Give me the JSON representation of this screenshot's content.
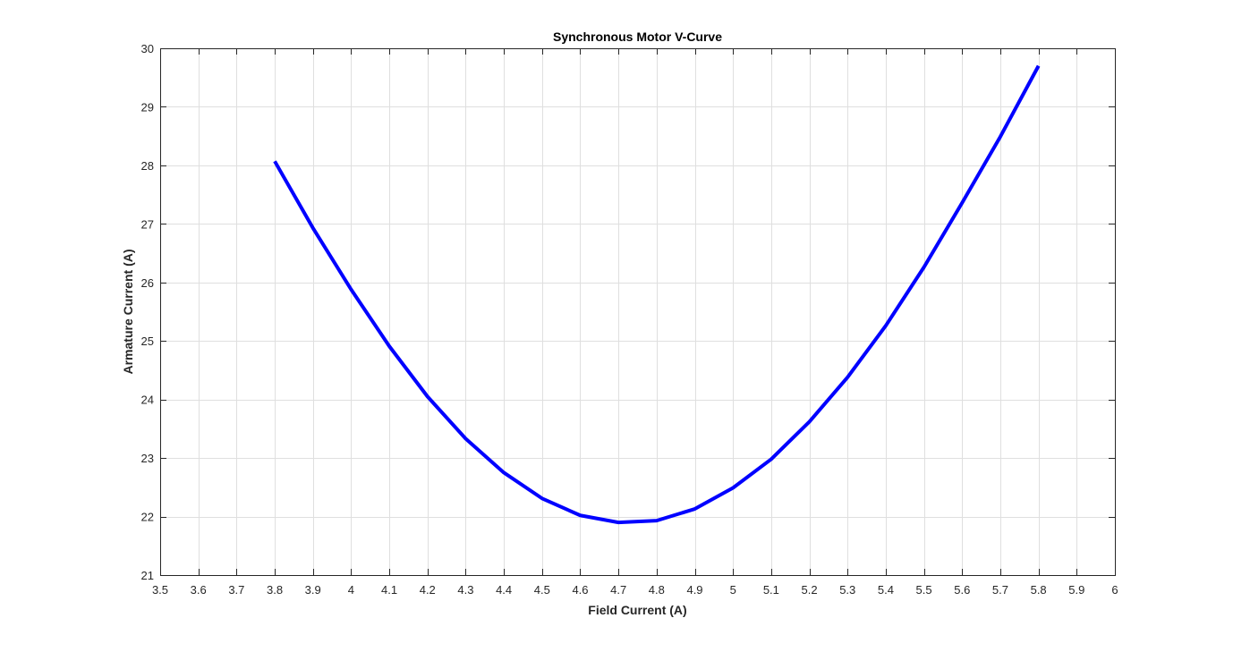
{
  "chart_data": {
    "type": "line",
    "title": "Synchronous Motor V-Curve",
    "xlabel": "Field Current (A)",
    "ylabel": "Armature Current (A)",
    "xlim": [
      3.5,
      6
    ],
    "ylim": [
      21,
      30
    ],
    "xticks": [
      "3.5",
      "3.6",
      "3.7",
      "3.8",
      "3.9",
      "4",
      "4.1",
      "4.2",
      "4.3",
      "4.4",
      "4.5",
      "4.6",
      "4.7",
      "4.8",
      "4.9",
      "5",
      "5.1",
      "5.2",
      "5.3",
      "5.4",
      "5.5",
      "5.6",
      "5.7",
      "5.8",
      "5.9",
      "6"
    ],
    "yticks": [
      "21",
      "22",
      "23",
      "24",
      "25",
      "26",
      "27",
      "28",
      "29",
      "30"
    ],
    "grid": true,
    "series": [
      {
        "color": "#0000ff",
        "x": [
          3.8,
          3.9,
          4.0,
          4.1,
          4.2,
          4.3,
          4.4,
          4.5,
          4.6,
          4.7,
          4.8,
          4.9,
          5.0,
          5.1,
          5.2,
          5.3,
          5.4,
          5.5,
          5.6,
          5.7,
          5.8
        ],
        "y": [
          28.07,
          26.93,
          25.88,
          24.91,
          24.05,
          23.33,
          22.75,
          22.31,
          22.02,
          21.9,
          21.93,
          22.13,
          22.49,
          22.98,
          23.62,
          24.38,
          25.26,
          26.26,
          27.36,
          28.49,
          29.7
        ]
      }
    ]
  }
}
